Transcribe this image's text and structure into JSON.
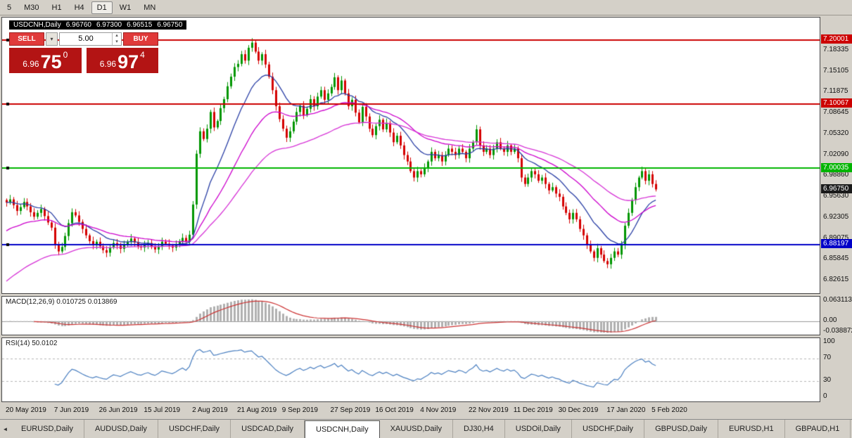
{
  "window": {
    "bg": "#d4d0c8"
  },
  "toolbar": {
    "timeframes": [
      "5",
      "M30",
      "H1",
      "H4",
      "D1",
      "W1",
      "MN"
    ],
    "active": "D1"
  },
  "chart": {
    "symbol": "USDCNH,Daily",
    "open": "6.96760",
    "high": "6.97300",
    "low": "6.96515",
    "close": "6.96750"
  },
  "trade_panel": {
    "sell_label": "SELL",
    "buy_label": "BUY",
    "volume": "5.00",
    "sell_price": {
      "big_figure": "6.96",
      "pips": "75",
      "pipette": "0"
    },
    "buy_price": {
      "big_figure": "6.96",
      "pips": "97",
      "pipette": "4"
    }
  },
  "price_axis": {
    "ticks": [
      "7.18335",
      "7.15105",
      "7.11875",
      "7.08645",
      "7.05320",
      "7.02090",
      "6.98860",
      "6.95630",
      "6.92305",
      "6.89075",
      "6.85845",
      "6.82615"
    ],
    "markers": [
      {
        "label": "7.20001",
        "color": "#cc0000"
      },
      {
        "label": "7.10067",
        "color": "#cc0000"
      },
      {
        "label": "7.00035",
        "color": "#00b400"
      },
      {
        "label": "6.96750",
        "color": "#1a1a1a"
      },
      {
        "label": "6.88197",
        "color": "#0000c8"
      }
    ]
  },
  "macd_panel": {
    "label": "MACD(12,26,9) 0.010725 0.013869",
    "axis": [
      "0.063113",
      "0.00",
      "-0.038872"
    ]
  },
  "rsi_panel": {
    "label": "RSI(14) 50.0102",
    "axis": [
      "100",
      "70",
      "30",
      "0"
    ]
  },
  "tabs": {
    "items": [
      "EURUSD,Daily",
      "AUDUSD,Daily",
      "USDCHF,Daily",
      "USDCAD,Daily",
      "USDCNH,Daily",
      "XAUUSD,Daily",
      "DJ30,H4",
      "USDOil,Daily",
      "USDCHF,Daily",
      "GBPUSD,Daily",
      "EURUSD,H1",
      "GBPAUD,H1"
    ],
    "active_index": 4,
    "scroll_left_icon": "◄"
  },
  "chart_data": {
    "type": "candlestick",
    "symbol": "USDCNH",
    "timeframe": "Daily",
    "y_range": [
      6.806,
      7.235
    ],
    "current_price": 6.9675,
    "levels": [
      {
        "price": 7.20001,
        "color": "#cc0000"
      },
      {
        "price": 7.10067,
        "color": "#cc0000"
      },
      {
        "price": 7.00035,
        "color": "#00b400"
      },
      {
        "price": 6.88197,
        "color": "#0000c8"
      }
    ],
    "x_ticks": [
      {
        "label": "20 May 2019",
        "index": 0
      },
      {
        "label": "7 Jun 2019",
        "index": 14
      },
      {
        "label": "26 Jun 2019",
        "index": 27
      },
      {
        "label": "15 Jul 2019",
        "index": 40
      },
      {
        "label": "2 Aug 2019",
        "index": 54
      },
      {
        "label": "21 Aug 2019",
        "index": 67
      },
      {
        "label": "9 Sep 2019",
        "index": 80
      },
      {
        "label": "27 Sep 2019",
        "index": 94
      },
      {
        "label": "16 Oct 2019",
        "index": 107
      },
      {
        "label": "4 Nov 2019",
        "index": 120
      },
      {
        "label": "22 Nov 2019",
        "index": 134
      },
      {
        "label": "11 Dec 2019",
        "index": 147
      },
      {
        "label": "30 Dec 2019",
        "index": 160
      },
      {
        "label": "17 Jan 2020",
        "index": 174
      },
      {
        "label": "5 Feb 2020",
        "index": 187
      }
    ],
    "closes": [
      6.947,
      6.952,
      6.943,
      6.934,
      6.94,
      6.948,
      6.941,
      6.932,
      6.925,
      6.931,
      6.937,
      6.926,
      6.916,
      6.908,
      6.882,
      6.871,
      6.878,
      6.895,
      6.915,
      6.932,
      6.927,
      6.917,
      6.906,
      6.896,
      6.887,
      6.881,
      6.886,
      6.879,
      6.873,
      6.869,
      6.877,
      6.884,
      6.88,
      6.875,
      6.881,
      6.886,
      6.891,
      6.885,
      6.879,
      6.877,
      6.881,
      6.884,
      6.878,
      6.874,
      6.879,
      6.886,
      6.883,
      6.88,
      6.877,
      6.881,
      6.887,
      6.892,
      6.886,
      6.897,
      6.944,
      7.023,
      7.058,
      7.046,
      7.062,
      7.088,
      7.064,
      7.074,
      7.094,
      7.108,
      7.128,
      7.143,
      7.158,
      7.163,
      7.178,
      7.168,
      7.188,
      7.196,
      7.182,
      7.168,
      7.178,
      7.162,
      7.143,
      7.122,
      7.097,
      7.077,
      7.062,
      7.048,
      7.058,
      7.073,
      7.088,
      7.098,
      7.083,
      7.093,
      7.108,
      7.097,
      7.112,
      7.122,
      7.107,
      7.117,
      7.127,
      7.142,
      7.122,
      7.137,
      7.117,
      7.097,
      7.107,
      7.087,
      7.072,
      7.096,
      7.081,
      7.062,
      7.052,
      7.066,
      7.076,
      7.061,
      7.071,
      7.056,
      7.041,
      7.051,
      7.036,
      7.021,
      7.011,
      6.996,
      6.986,
      6.996,
      6.991,
      7.001,
      7.011,
      7.026,
      7.016,
      7.021,
      7.011,
      7.021,
      7.031,
      7.026,
      7.021,
      7.031,
      7.026,
      7.016,
      7.031,
      7.041,
      7.061,
      7.036,
      7.026,
      7.031,
      7.021,
      7.031,
      7.041,
      7.031,
      7.026,
      7.036,
      7.026,
      7.031,
      7.016,
      6.986,
      6.976,
      6.986,
      6.996,
      6.991,
      6.981,
      6.986,
      6.976,
      6.966,
      6.971,
      6.961,
      6.956,
      6.941,
      6.931,
      6.921,
      6.931,
      6.921,
      6.906,
      6.896,
      6.881,
      6.871,
      6.861,
      6.876,
      6.866,
      6.856,
      6.851,
      6.861,
      6.871,
      6.866,
      6.881,
      6.911,
      6.931,
      6.951,
      6.971,
      6.986,
      6.996,
      6.981,
      6.991,
      6.976,
      6.9675
    ],
    "indicators": {
      "macd": {
        "fast": 12,
        "slow": 26,
        "signal": 9,
        "current_main": 0.010725,
        "current_signal": 0.013869
      },
      "rsi": {
        "period": 14,
        "current": 50.0102
      }
    },
    "colors": {
      "up": "#009600",
      "down": "#d40000",
      "ma_fast": "#2a3fa5",
      "ma_mid": "#cc00cc",
      "ma_slow": "#d633d6",
      "macd_hist": "#b0b0b0",
      "macd_signal": "#cc3333",
      "rsi_line": "#4a7fc0"
    }
  }
}
